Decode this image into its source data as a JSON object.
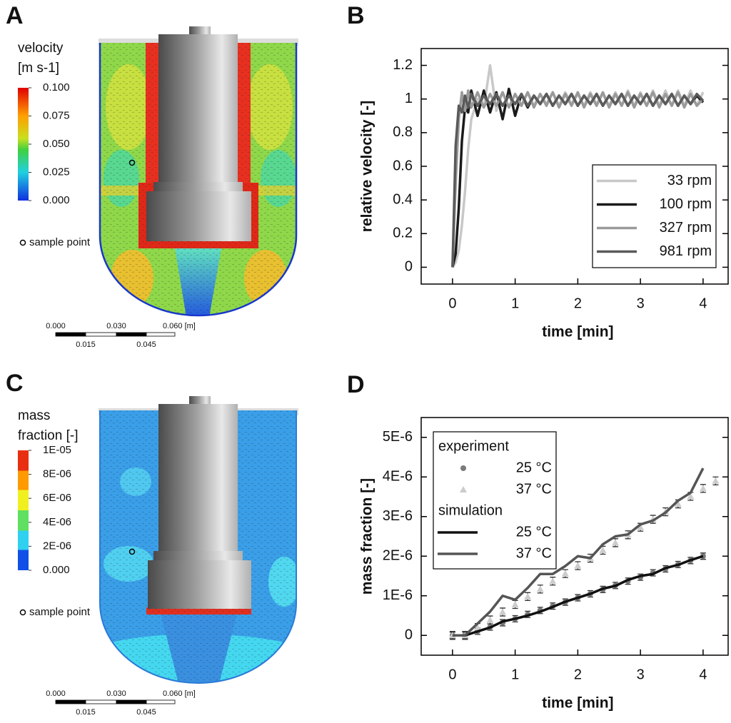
{
  "contour_plots": [
    {
      "panel_label": "A",
      "legend_title": [
        "velocity",
        "[m s-1]"
      ],
      "colorbar_ticks": [
        {
          "value": 0.1,
          "label": "0.100"
        },
        {
          "value": 0.075,
          "label": "0.075"
        },
        {
          "value": 0.05,
          "label": "0.050"
        },
        {
          "value": 0.025,
          "label": "0.025"
        },
        {
          "value": 0,
          "label": "0.000"
        }
      ],
      "sample_point_label": "sample point",
      "scale_labels": [
        "0.000",
        "0.030",
        "0.060 [m]",
        "0.015",
        "0.045"
      ]
    },
    {
      "panel_label": "C",
      "legend_title": [
        "mass",
        "fraction [-]"
      ],
      "colorbar_ticks": [
        {
          "value": 1e-05,
          "label": "1E-05"
        },
        {
          "value": 8e-06,
          "label": "8E-06"
        },
        {
          "value": 6e-06,
          "label": "6E-06"
        },
        {
          "value": 4e-06,
          "label": "4E-06"
        },
        {
          "value": 2e-06,
          "label": "2E-06"
        },
        {
          "value": 0,
          "label": "0.000"
        }
      ],
      "sample_point_label": "sample point",
      "scale_labels": [
        "0.000",
        "0.030",
        "0.060 [m]",
        "0.015",
        "0.045"
      ]
    }
  ],
  "chart_data": [
    {
      "type": "line",
      "panel_label": "B",
      "xlabel": "time [min]",
      "ylabel": "relative velocity [-]",
      "xlim": [
        -0.5,
        4.4
      ],
      "ylim": [
        -0.1,
        1.3
      ],
      "xticks": [
        0,
        1,
        2,
        3,
        4
      ],
      "yticks": [
        0,
        0.2,
        0.4,
        0.6,
        0.8,
        1,
        1.2
      ],
      "legend": {
        "position": "lower right"
      },
      "x": [
        0,
        0.05,
        0.1,
        0.15,
        0.2,
        0.25,
        0.3,
        0.4,
        0.5,
        0.6,
        0.7,
        0.8,
        0.9,
        1,
        1.1,
        1.2,
        1.3,
        1.4,
        1.5,
        1.6,
        1.7,
        1.8,
        1.9,
        2,
        2.1,
        2.2,
        2.3,
        2.4,
        2.5,
        2.6,
        2.7,
        2.8,
        2.9,
        3,
        3.1,
        3.2,
        3.3,
        3.4,
        3.5,
        3.6,
        3.7,
        3.8,
        3.9,
        4
      ],
      "series": [
        {
          "name": "33 rpm",
          "style": "line",
          "color": "#c8c8c8",
          "values": [
            0,
            0.03,
            0.1,
            0.25,
            0.45,
            0.7,
            0.88,
            1.0,
            0.95,
            1.2,
            0.93,
            1.04,
            0.95,
            1.03,
            0.96,
            1.04,
            0.96,
            1.03,
            0.97,
            1.04,
            0.96,
            1.04,
            0.97,
            1.03,
            0.96,
            1.04,
            0.97,
            1.03,
            0.96,
            1.04,
            0.96,
            1.05,
            0.96,
            1.04,
            0.96,
            1.05,
            0.96,
            1.05,
            0.96,
            1.05,
            0.96,
            1.05,
            0.96,
            1.04
          ]
        },
        {
          "name": "100 rpm",
          "style": "line",
          "color": "#1a1a1a",
          "values": [
            0,
            0.08,
            0.35,
            0.75,
            0.95,
            0.92,
            1.05,
            0.9,
            1.05,
            0.92,
            1.04,
            0.88,
            1.06,
            0.9,
            1.03,
            0.95,
            1.02,
            0.97,
            1.03,
            0.96,
            1.02,
            0.97,
            1.03,
            0.96,
            1.02,
            0.97,
            1.03,
            0.96,
            1.02,
            0.97,
            1.03,
            0.96,
            1.02,
            0.97,
            1.03,
            0.96,
            1.02,
            0.97,
            1.03,
            0.96,
            1.02,
            0.97,
            1.02,
            0.98
          ]
        },
        {
          "name": "327 rpm",
          "style": "line",
          "color": "#9a9a9a",
          "values": [
            0,
            0.5,
            0.88,
            1.04,
            0.93,
            1.05,
            0.95,
            1.04,
            0.95,
            1.03,
            0.96,
            1.04,
            0.95,
            1.03,
            0.96,
            1.04,
            0.95,
            1.03,
            0.96,
            1.04,
            0.95,
            1.03,
            0.96,
            1.04,
            0.95,
            1.03,
            0.96,
            1.04,
            0.95,
            1.03,
            0.96,
            1.04,
            0.95,
            1.03,
            0.96,
            1.04,
            0.95,
            1.03,
            0.96,
            1.04,
            0.95,
            1.03,
            0.96,
            1.0
          ]
        },
        {
          "name": "981 rpm",
          "style": "line",
          "color": "#5a5a5a",
          "values": [
            0,
            0.72,
            0.96,
            0.92,
            1.02,
            0.95,
            1.03,
            0.96,
            1.02,
            0.97,
            1.03,
            0.96,
            1.02,
            0.97,
            1.03,
            0.96,
            1.02,
            0.97,
            1.03,
            0.96,
            1.02,
            0.97,
            1.03,
            0.96,
            1.02,
            0.97,
            1.03,
            0.96,
            1.02,
            0.97,
            1.03,
            0.96,
            1.02,
            0.97,
            1.03,
            0.96,
            1.02,
            0.97,
            1.03,
            0.96,
            1.02,
            0.97,
            1.03,
            0.99
          ]
        }
      ]
    },
    {
      "type": "line",
      "panel_label": "D",
      "xlabel": "time [min]",
      "ylabel": "mass fraction [-]",
      "xlim": [
        -0.5,
        4.4
      ],
      "ylim": [
        -5e-07,
        5.5e-06
      ],
      "xticks": [
        0,
        1,
        2,
        3,
        4
      ],
      "yticks": [
        0,
        {
          "value": 1e-06,
          "label": "1E-6"
        },
        {
          "value": 2e-06,
          "label": "2E-6"
        },
        {
          "value": 3e-06,
          "label": "3E-6"
        },
        {
          "value": 4e-06,
          "label": "4E-6"
        },
        {
          "value": 5e-06,
          "label": "5E-6"
        }
      ],
      "legend": {
        "position": "upper left",
        "titles": {
          "markers": "experiment",
          "line": "simulation"
        }
      },
      "series": [
        {
          "name": "25 °C",
          "style": "markers",
          "marker": "circle",
          "color": "#7a7a7a",
          "x": [
            0,
            0.2,
            0.4,
            0.6,
            0.8,
            1.0,
            1.2,
            1.4,
            1.6,
            1.8,
            2.0,
            2.2,
            2.4,
            2.6,
            2.8,
            3.0,
            3.2,
            3.4,
            3.6,
            3.8,
            4.0
          ],
          "values": [
            0,
            0,
            1.05e-07,
            2.1e-07,
            3.2e-07,
            4.2e-07,
            5.3e-07,
            6.3e-07,
            7.4e-07,
            8.4e-07,
            9.5e-07,
            1.05e-06,
            1.16e-06,
            1.26e-06,
            1.37e-06,
            1.47e-06,
            1.58e-06,
            1.68e-06,
            1.79e-06,
            1.89e-06,
            2e-06
          ],
          "errors": [
            8e-08,
            8e-08,
            8e-08,
            8e-08,
            8e-08,
            8e-08,
            8e-08,
            8e-08,
            8e-08,
            8e-08,
            8e-08,
            8e-08,
            8e-08,
            8e-08,
            8e-08,
            8e-08,
            8e-08,
            8e-08,
            8e-08,
            8e-08,
            8e-08
          ]
        },
        {
          "name": "37 °C",
          "style": "markers",
          "marker": "triangle",
          "color": "#cccccc",
          "x": [
            0,
            0.2,
            0.4,
            0.6,
            0.8,
            1.0,
            1.2,
            1.4,
            1.6,
            1.8,
            2.0,
            2.2,
            2.4,
            2.6,
            2.8,
            3.0,
            3.2,
            3.4,
            3.6,
            3.8,
            4.0,
            4.2
          ],
          "values": [
            0,
            0,
            2e-07,
            3.9e-07,
            5.9e-07,
            7.8e-07,
            9.8e-07,
            1.17e-06,
            1.37e-06,
            1.56e-06,
            1.76e-06,
            1.95e-06,
            2.15e-06,
            2.34e-06,
            2.54e-06,
            2.73e-06,
            2.93e-06,
            3.12e-06,
            3.32e-06,
            3.51e-06,
            3.71e-06,
            3.9e-06
          ],
          "errors": [
            1e-07,
            1e-07,
            1e-07,
            1e-07,
            1e-07,
            1e-07,
            1e-07,
            1e-07,
            1e-07,
            1e-07,
            1e-07,
            1e-07,
            1e-07,
            1e-07,
            1e-07,
            1e-07,
            1e-07,
            1e-07,
            1e-07,
            1e-07,
            1e-07,
            1e-07
          ]
        },
        {
          "name": "25 °C",
          "style": "line",
          "color": "#111111",
          "x": [
            0,
            0.2,
            0.4,
            0.6,
            0.8,
            1.0,
            1.2,
            1.4,
            1.6,
            1.8,
            2.0,
            2.2,
            2.4,
            2.6,
            2.8,
            3.0,
            3.2,
            3.4,
            3.6,
            3.8,
            4.0
          ],
          "values": [
            0,
            0,
            1e-07,
            2e-07,
            3.5e-07,
            4.2e-07,
            5e-07,
            6e-07,
            7.2e-07,
            8.5e-07,
            9.5e-07,
            1.05e-06,
            1.18e-06,
            1.25e-06,
            1.4e-06,
            1.5e-06,
            1.55e-06,
            1.7e-06,
            1.78e-06,
            1.9e-06,
            2e-06
          ]
        },
        {
          "name": "37 °C",
          "style": "line",
          "color": "#555555",
          "x": [
            0,
            0.2,
            0.4,
            0.6,
            0.8,
            1.0,
            1.2,
            1.4,
            1.6,
            1.8,
            2.0,
            2.2,
            2.4,
            2.6,
            2.8,
            3.0,
            3.2,
            3.4,
            3.6,
            3.8,
            4.0
          ],
          "values": [
            0,
            0,
            3e-07,
            6e-07,
            1e-06,
            9e-07,
            1.2e-06,
            1.55e-06,
            1.55e-06,
            1.75e-06,
            2e-06,
            1.95e-06,
            2.3e-06,
            2.5e-06,
            2.55e-06,
            2.8e-06,
            2.9e-06,
            3.1e-06,
            3.4e-06,
            3.6e-06,
            4.22e-06
          ]
        }
      ]
    }
  ]
}
